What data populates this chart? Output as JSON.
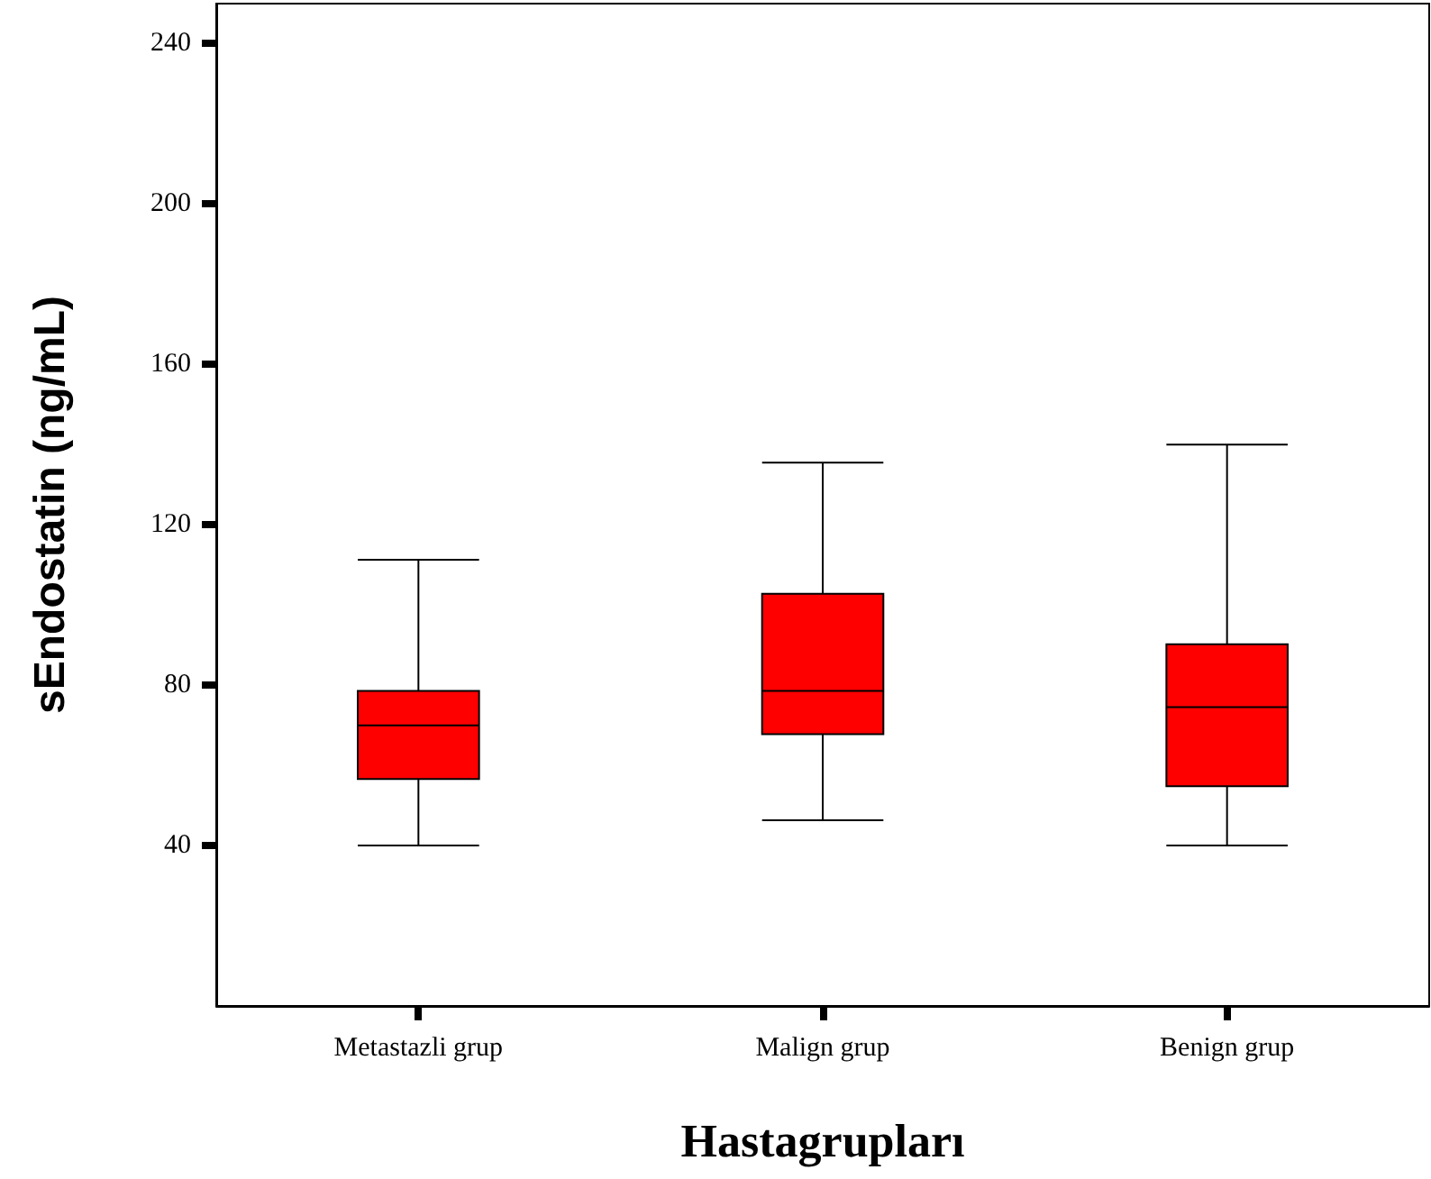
{
  "chart_data": {
    "type": "box",
    "xlabel": "Hastagrupları",
    "ylabel": "sEndostatin (ng/mL)",
    "categories": [
      "Metastazli grup",
      "Malign grup",
      "Benign grup"
    ],
    "boxes": [
      {
        "low": 40,
        "q1": 56.6,
        "median": 70,
        "q3": 78.6,
        "high": 111.3
      },
      {
        "low": 46.3,
        "q1": 67.8,
        "median": 78.6,
        "q3": 102.8,
        "high": 135.5
      },
      {
        "low": 40,
        "q1": 54.8,
        "median": 74.5,
        "q3": 90.2,
        "high": 140
      }
    ],
    "color": "#ff0000",
    "ylim": [
      0,
      250
    ],
    "yticks": [
      40,
      80,
      120,
      160,
      200,
      240
    ],
    "grid": false
  }
}
